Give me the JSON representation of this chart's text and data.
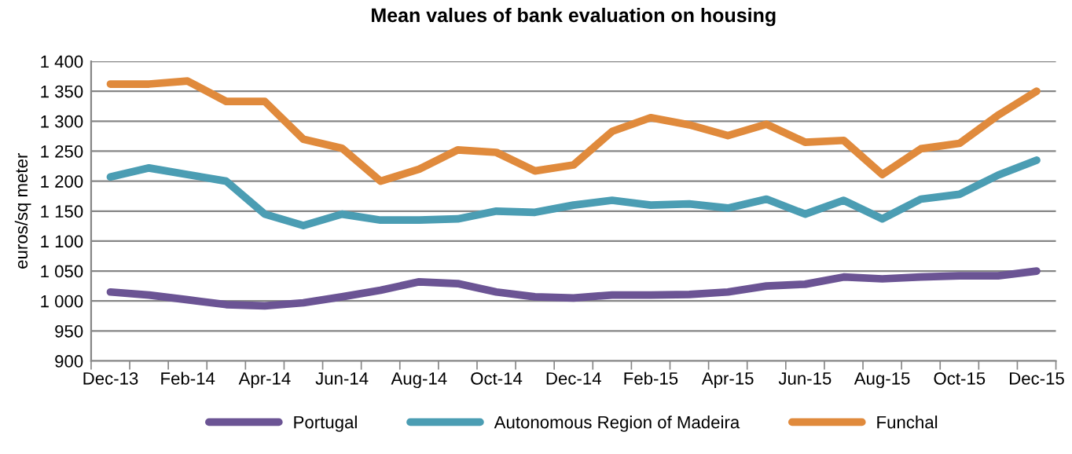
{
  "chart_data": {
    "type": "line",
    "title": "Mean values of bank evaluation on housing",
    "ylabel": "euros/sq meter",
    "categories": [
      "Dec-13",
      null,
      "Feb-14",
      null,
      "Apr-14",
      null,
      "Jun-14",
      null,
      "Aug-14",
      null,
      "Oct-14",
      null,
      "Dec-14",
      null,
      "Feb-15",
      null,
      "Apr-15",
      null,
      "Jun-15",
      null,
      "Aug-15",
      null,
      "Oct-15",
      null,
      "Dec-15"
    ],
    "series": [
      {
        "name": "Portugal",
        "color": "#6b5494",
        "values": [
          1015,
          1010,
          1002,
          994,
          992,
          997,
          1007,
          1018,
          1032,
          1029,
          1015,
          1007,
          1005,
          1010,
          1010,
          1011,
          1015,
          1025,
          1028,
          1040,
          1037,
          1040,
          1042,
          1042,
          1050
        ]
      },
      {
        "name": "Autonomous Region of Madeira",
        "color": "#4b9db3",
        "values": [
          1207,
          1222,
          1211,
          1200,
          1145,
          1126,
          1145,
          1135,
          1135,
          1137,
          1150,
          1148,
          1160,
          1168,
          1160,
          1162,
          1155,
          1170,
          1145,
          1168,
          1137,
          1170,
          1178,
          1210,
          1235
        ]
      },
      {
        "name": "Funchal",
        "color": "#e08a3c",
        "values": [
          1362,
          1362,
          1367,
          1333,
          1333,
          1270,
          1255,
          1200,
          1220,
          1252,
          1248,
          1217,
          1227,
          1283,
          1306,
          1294,
          1276,
          1295,
          1265,
          1268,
          1211,
          1254,
          1263,
          1310,
          1350
        ]
      }
    ],
    "ylim": [
      900,
      1400
    ],
    "yticks": [
      {
        "value": 900,
        "label": "900"
      },
      {
        "value": 950,
        "label": "950"
      },
      {
        "value": 1000,
        "label": "1 000"
      },
      {
        "value": 1050,
        "label": "1 050"
      },
      {
        "value": 1100,
        "label": "1 100"
      },
      {
        "value": 1150,
        "label": "1 150"
      },
      {
        "value": 1200,
        "label": "1 200"
      },
      {
        "value": 1250,
        "label": "1 250"
      },
      {
        "value": 1300,
        "label": "1 300"
      },
      {
        "value": 1350,
        "label": "1 350"
      },
      {
        "value": 1400,
        "label": "1 400"
      }
    ],
    "grid": "y",
    "legend": "bottom",
    "marker": "none",
    "line_style": "solid"
  }
}
